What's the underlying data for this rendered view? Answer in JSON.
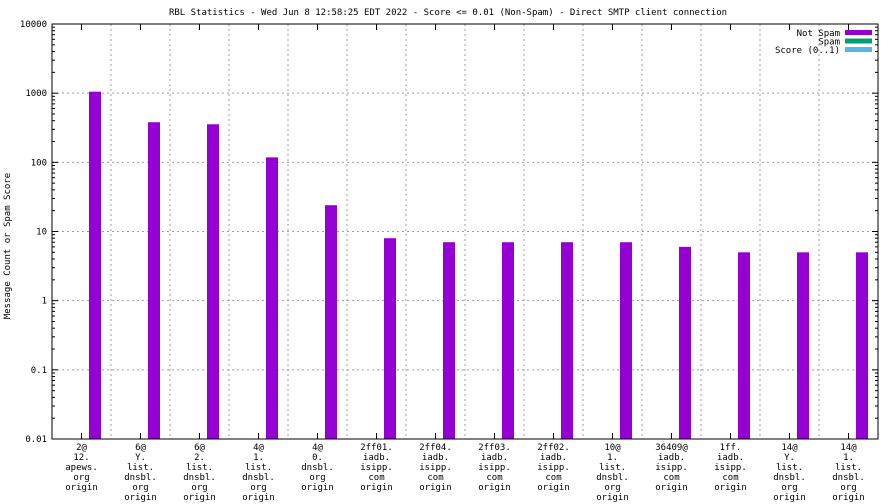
{
  "chart_data": {
    "type": "bar",
    "title": "RBL Statistics - Wed Jun  8 12:58:25 EDT 2022 - Score <= 0.01 (Non-Spam) - Direct SMTP client connection",
    "ylabel": "Message Count or Spam Score",
    "xlabel": "",
    "yscale": "log",
    "ylim": [
      0.01,
      10000
    ],
    "yticks": [
      "10000",
      "1000",
      "100",
      "10",
      "1",
      "0.1",
      "0.01"
    ],
    "grid": true,
    "legend_position": "top-right",
    "legend": [
      {
        "name": "Not Spam",
        "color": "#9400d3"
      },
      {
        "name": "Spam",
        "color": "#009e73"
      },
      {
        "name": "Score (0..1)",
        "color": "#56b4e9"
      }
    ],
    "categories": [
      [
        "2@",
        "12.",
        "apews.",
        "org",
        "origin"
      ],
      [
        "6@",
        "Y.",
        "list.",
        "dnsbl.",
        "org",
        "origin"
      ],
      [
        "6@",
        "2.",
        "list.",
        "dnsbl.",
        "org",
        "origin"
      ],
      [
        "4@",
        "1.",
        "list.",
        "dnsbl.",
        "org",
        "origin"
      ],
      [
        "4@",
        "0.",
        "dnsbl.",
        "org",
        "origin"
      ],
      [
        "2ff01.",
        "iadb.",
        "isipp.",
        "com",
        "origin"
      ],
      [
        "2ff04.",
        "iadb.",
        "isipp.",
        "com",
        "origin"
      ],
      [
        "2ff03.",
        "iadb.",
        "isipp.",
        "com",
        "origin"
      ],
      [
        "2ff02.",
        "iadb.",
        "isipp.",
        "com",
        "origin"
      ],
      [
        "10@",
        "1.",
        "list.",
        "dnsbl.",
        "org",
        "origin"
      ],
      [
        "36409@",
        "iadb.",
        "isipp.",
        "com",
        "origin"
      ],
      [
        "1ff.",
        "iadb.",
        "isipp.",
        "com",
        "origin"
      ],
      [
        "14@",
        "Y.",
        "list.",
        "dnsbl.",
        "org",
        "origin"
      ],
      [
        "14@",
        "1.",
        "list.",
        "dnsbl.",
        "org",
        "origin"
      ]
    ],
    "series": [
      {
        "name": "Not Spam",
        "color": "#9400d3",
        "values": [
          1050,
          380,
          355,
          118,
          24,
          8,
          7,
          7,
          7,
          7,
          6,
          5,
          5,
          5
        ]
      },
      {
        "name": "Spam",
        "color": "#009e73",
        "values": [
          0,
          0,
          0,
          0,
          0,
          0,
          0,
          0,
          0,
          0,
          0,
          0,
          0,
          0
        ]
      },
      {
        "name": "Score (0..1)",
        "color": "#56b4e9",
        "values": [
          0,
          0,
          0,
          0,
          0,
          0,
          0,
          0,
          0,
          0,
          0,
          0,
          0,
          0
        ]
      }
    ]
  }
}
